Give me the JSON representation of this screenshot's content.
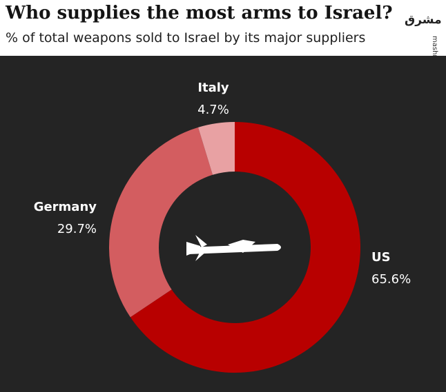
{
  "header": {
    "title": "Who supplies the most arms to Israel?",
    "subtitle": "% of total weapons sold to Israel by its major suppliers"
  },
  "watermark": {
    "logo_text": "مشرق",
    "site": "mashreghnews.ir"
  },
  "icons": {
    "center": "missile-icon"
  },
  "colors": {
    "background": "#242424",
    "US": "#b80000",
    "Germany": "#d35d60",
    "Italy": "#e8a1a3"
  },
  "chart_data": {
    "type": "pie",
    "style": "donut",
    "title": "Who supplies the most arms to Israel?",
    "subtitle": "% of total weapons sold to Israel by its major suppliers",
    "series": [
      {
        "name": "US",
        "label": "US",
        "value": 65.6,
        "value_label": "65.6%",
        "color": "#b80000"
      },
      {
        "name": "Germany",
        "label": "Germany",
        "value": 29.7,
        "value_label": "29.7%",
        "color": "#d35d60"
      },
      {
        "name": "Italy",
        "label": "Italy",
        "value": 4.7,
        "value_label": "4.7%",
        "color": "#e8a1a3"
      }
    ]
  }
}
